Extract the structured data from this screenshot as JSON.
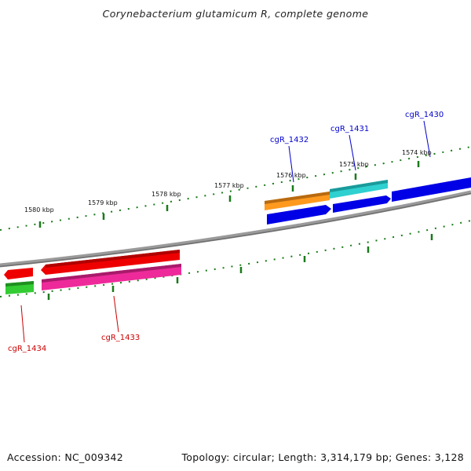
{
  "title": "Corynebacterium glutamicum R, complete genome",
  "footer": {
    "accession": "Accession: NC_009342",
    "summary": "Topology: circular; Length: 3,314,179 bp; Genes: 3,128"
  },
  "colors": {
    "backbone": "#8a8a8a",
    "tick": "#1a7a1a",
    "label_forward": "#0000cc",
    "label_reverse": "#cc0000",
    "orange": "#ff9a1e",
    "cyan": "#2fd0d0",
    "blue": "#0000e6",
    "red": "#ee0000",
    "magenta": "#ee2a9a",
    "green": "#33cc33"
  },
  "ruler": {
    "ticks_kbp": [
      {
        "label": "1580 kbp"
      },
      {
        "label": "1579 kbp"
      },
      {
        "label": "1578 kbp"
      },
      {
        "label": "1577 kbp"
      },
      {
        "label": "1576 kbp"
      },
      {
        "label": "1575 kbp"
      },
      {
        "label": "1574 kbp"
      }
    ]
  },
  "gene_labels": [
    {
      "name": "cgR_1432",
      "strand": "forward"
    },
    {
      "name": "cgR_1431",
      "strand": "forward"
    },
    {
      "name": "cgR_1430",
      "strand": "forward"
    },
    {
      "name": "cgR_1434",
      "strand": "reverse"
    },
    {
      "name": "cgR_1433",
      "strand": "reverse"
    }
  ]
}
